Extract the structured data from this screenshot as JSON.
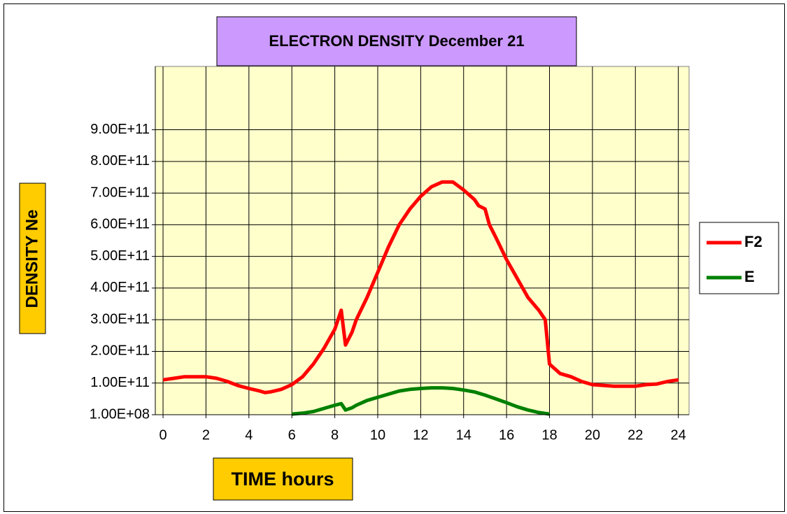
{
  "chart_data": {
    "type": "line",
    "title": "ELECTRON DENSITY December 21",
    "x_label": "TIME  hours",
    "y_label": "DENSITY  Ne",
    "x": [
      0,
      0.5,
      1,
      1.5,
      2,
      2.5,
      3,
      3.5,
      4,
      4.5,
      4.75,
      5,
      5.5,
      6,
      6.5,
      7,
      7.5,
      8,
      8.3,
      8.5,
      8.8,
      9,
      9.5,
      10,
      10.5,
      11,
      11.5,
      12,
      12.5,
      13,
      13.5,
      14,
      14.5,
      14.7,
      15,
      15.2,
      15.5,
      16,
      16.5,
      17,
      17.5,
      17.8,
      18,
      18.5,
      19,
      19.5,
      20,
      21,
      22,
      22.5,
      23,
      23.5,
      24
    ],
    "series": [
      {
        "name": "F2",
        "color": "#ff0000",
        "values": [
          110000000000.0,
          115000000000.0,
          120000000000.0,
          120000000000.0,
          120000000000.0,
          115000000000.0,
          105000000000.0,
          92000000000.0,
          83000000000.0,
          75000000000.0,
          70000000000.0,
          72000000000.0,
          80000000000.0,
          95000000000.0,
          120000000000.0,
          160000000000.0,
          210000000000.0,
          270000000000.0,
          330000000000.0,
          220000000000.0,
          260000000000.0,
          300000000000.0,
          370000000000.0,
          450000000000.0,
          530000000000.0,
          600000000000.0,
          650000000000.0,
          690000000000.0,
          720000000000.0,
          735000000000.0,
          735000000000.0,
          710000000000.0,
          680000000000.0,
          660000000000.0,
          650000000000.0,
          600000000000.0,
          560000000000.0,
          490000000000.0,
          430000000000.0,
          370000000000.0,
          330000000000.0,
          300000000000.0,
          160000000000.0,
          130000000000.0,
          120000000000.0,
          105000000000.0,
          95000000000.0,
          90000000000.0,
          90000000000.0,
          95000000000.0,
          97000000000.0,
          105000000000.0,
          110000000000.0
        ]
      },
      {
        "name": "E",
        "color": "#008000",
        "values": [
          null,
          null,
          null,
          null,
          null,
          null,
          null,
          null,
          null,
          null,
          null,
          null,
          null,
          2000000000.0,
          5000000000.0,
          10000000000.0,
          20000000000.0,
          30000000000.0,
          35000000000.0,
          15000000000.0,
          22000000000.0,
          30000000000.0,
          45000000000.0,
          55000000000.0,
          65000000000.0,
          75000000000.0,
          80000000000.0,
          83000000000.0,
          85000000000.0,
          85000000000.0,
          83000000000.0,
          78000000000.0,
          72000000000.0,
          68000000000.0,
          62000000000.0,
          57000000000.0,
          50000000000.0,
          38000000000.0,
          25000000000.0,
          15000000000.0,
          7000000000.0,
          4000000000.0,
          2000000000.0,
          null,
          null,
          null,
          null,
          null,
          null,
          null,
          null,
          null,
          null
        ]
      }
    ],
    "xlim": [
      -0.36,
      24.5
    ],
    "xticks": [
      0,
      2,
      4,
      6,
      8,
      10,
      12,
      14,
      16,
      18,
      20,
      22,
      24
    ],
    "ylim": [
      100000000,
      1100100000000
    ],
    "yticks": [
      {
        "value": 100000000,
        "label": "1.00E+08"
      },
      {
        "value": 100100000000,
        "label": "1.00E+11"
      },
      {
        "value": 200100000000,
        "label": "2.00E+11"
      },
      {
        "value": 300100000000,
        "label": "3.00E+11"
      },
      {
        "value": 400100000000,
        "label": "4.00E+11"
      },
      {
        "value": 500100000000,
        "label": "5.00E+11"
      },
      {
        "value": 600100000000,
        "label": "6.00E+11"
      },
      {
        "value": 700100000000,
        "label": "7.00E+11"
      },
      {
        "value": 800100000000,
        "label": "8.00E+11"
      },
      {
        "value": 900100000000,
        "label": "9.00E+11"
      }
    ],
    "grid": true,
    "legend": "right"
  }
}
